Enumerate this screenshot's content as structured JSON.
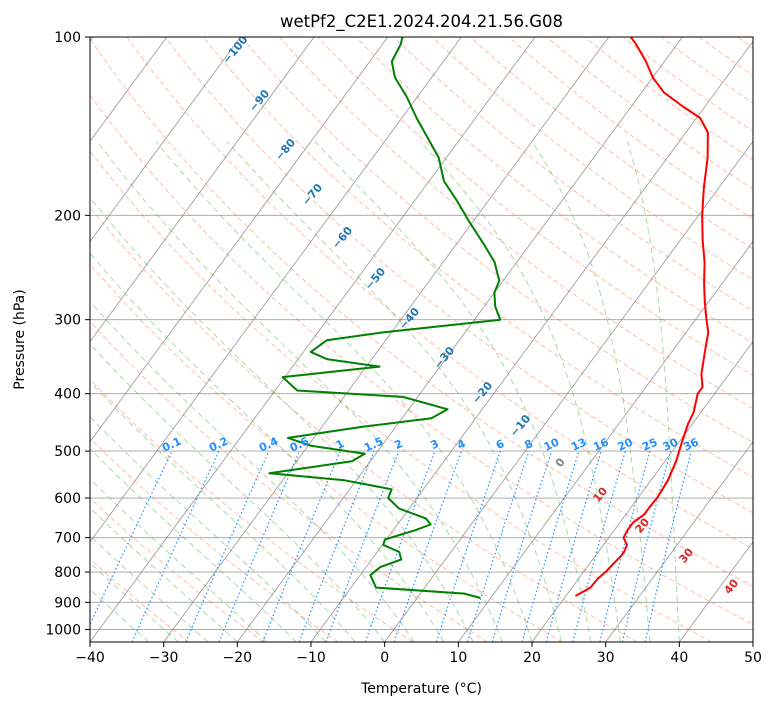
{
  "chart_data": {
    "type": "skew-t",
    "title": "wetPf2_C2E1.2024.204.21.56.G08",
    "xlabel": "Temperature (°C)",
    "ylabel": "Pressure (hPa)",
    "xlim": [
      -40,
      50
    ],
    "ylim": [
      1050,
      100
    ],
    "y_scale": "log",
    "grid": true,
    "x_ticks": [
      -40,
      -30,
      -20,
      -10,
      0,
      10,
      20,
      30,
      40,
      50
    ],
    "x_tick_labels": [
      "−40",
      "−30",
      "−20",
      "−10",
      "0",
      "10",
      "20",
      "30",
      "40",
      "50"
    ],
    "y_ticks": [
      100,
      200,
      300,
      400,
      500,
      600,
      700,
      800,
      900,
      1000
    ],
    "y_tick_labels": [
      "100",
      "200",
      "300",
      "400",
      "500",
      "600",
      "700",
      "800",
      "900",
      "1000"
    ],
    "series": [
      {
        "color": "#ff0000",
        "points": [
          [
            21.3,
            878
          ],
          [
            22.5,
            850
          ],
          [
            22.6,
            820
          ],
          [
            23.0,
            800
          ],
          [
            23.2,
            780
          ],
          [
            23.4,
            760
          ],
          [
            23.5,
            750
          ],
          [
            23.5,
            740
          ],
          [
            23.2,
            720
          ],
          [
            22.0,
            700
          ],
          [
            21.8,
            680
          ],
          [
            21.8,
            660
          ],
          [
            22.5,
            640
          ],
          [
            22.5,
            620
          ],
          [
            22.6,
            600
          ],
          [
            22.3,
            560
          ],
          [
            21.5,
            520
          ],
          [
            20.3,
            480
          ],
          [
            19.4,
            450
          ],
          [
            19.0,
            430
          ],
          [
            17.7,
            400
          ],
          [
            17.7,
            390
          ],
          [
            16.2,
            370
          ],
          [
            14.5,
            340
          ],
          [
            13.0,
            315
          ],
          [
            11.5,
            300
          ],
          [
            9.5,
            280
          ],
          [
            7.5,
            260
          ],
          [
            5.5,
            240
          ],
          [
            3.0,
            220
          ],
          [
            0.5,
            200
          ],
          [
            -2.0,
            180
          ],
          [
            -4.5,
            160
          ],
          [
            -7.0,
            145
          ],
          [
            -9.5,
            137
          ],
          [
            -13.0,
            131
          ],
          [
            -17.0,
            124
          ],
          [
            -20.0,
            117
          ],
          [
            -22.5,
            110
          ],
          [
            -25.5,
            103
          ],
          [
            -27.0,
            100
          ]
        ]
      },
      {
        "color": "#008000",
        "points": [
          [
            8.6,
            885
          ],
          [
            6.0,
            870
          ],
          [
            -6.6,
            850
          ],
          [
            -8.6,
            810
          ],
          [
            -8.1,
            785
          ],
          [
            -6.0,
            762
          ],
          [
            -7.0,
            740
          ],
          [
            -9.9,
            720
          ],
          [
            -10.2,
            705
          ],
          [
            -7.0,
            680
          ],
          [
            -5.5,
            665
          ],
          [
            -6.7,
            650
          ],
          [
            -11.4,
            625
          ],
          [
            -13.9,
            600
          ],
          [
            -14.3,
            580
          ],
          [
            -21.6,
            560
          ],
          [
            -32.5,
            545
          ],
          [
            -22.5,
            520
          ],
          [
            -21.5,
            505
          ],
          [
            -29.5,
            490
          ],
          [
            -33.5,
            475
          ],
          [
            -24.5,
            455
          ],
          [
            -16.0,
            440
          ],
          [
            -14.7,
            425
          ],
          [
            -22.0,
            405
          ],
          [
            -37.0,
            395
          ],
          [
            -40.3,
            375
          ],
          [
            -28.2,
            360
          ],
          [
            -36.0,
            350
          ],
          [
            -39.0,
            340
          ],
          [
            -38.0,
            325
          ],
          [
            -31.0,
            315
          ],
          [
            -16.5,
            300
          ],
          [
            -18.5,
            285
          ],
          [
            -20.0,
            270
          ],
          [
            -20.5,
            258
          ],
          [
            -23.0,
            240
          ],
          [
            -26.0,
            225
          ],
          [
            -30.5,
            205
          ],
          [
            -34.0,
            190
          ],
          [
            -38.0,
            175
          ],
          [
            -41.0,
            160
          ],
          [
            -44.5,
            148
          ],
          [
            -48.0,
            137
          ],
          [
            -51.5,
            126
          ],
          [
            -55.0,
            117
          ],
          [
            -57.0,
            110
          ],
          [
            -57.5,
            103
          ],
          [
            -58.0,
            100
          ]
        ]
      }
    ],
    "mixing_ratio_labels": [
      "0.1",
      "0.2",
      "0.4",
      "0.6",
      "1",
      "1.5",
      "2",
      "3",
      "4",
      "6",
      "8",
      "10",
      "13",
      "16",
      "20",
      "25",
      "30",
      "36"
    ],
    "dry_adiabat_labels": [
      "−100",
      "−90",
      "−80",
      "−70",
      "−60",
      "−50",
      "−40",
      "−30",
      "−20",
      "−10",
      "0",
      "10",
      "20",
      "30",
      "40"
    ],
    "colors": {
      "temperature": "#ff0000",
      "dewpoint": "#008000",
      "mixing_ratio": "#1e90ff",
      "dry_adiabat_label": "#1f77b4",
      "hot_label": "#d62728",
      "zero_label": "#7f7f7f",
      "dry_adiabat_line": "#ff7f50",
      "moist_adiabat_line": "#2ca02c",
      "isotherm": "#808080",
      "isobar": "#808080"
    }
  }
}
